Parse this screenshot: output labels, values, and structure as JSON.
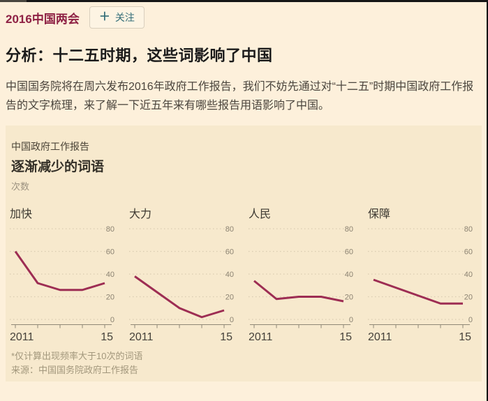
{
  "page": {
    "topic_tag": "2016中国两会",
    "follow_button": {
      "icon": "＋",
      "label": "关注"
    },
    "headline": "分析：十二五时期，这些词影响了中国",
    "body": "中国国务院将在周六发布2016年政府工作报告，我们不妨先通过对“十二五”时期中国政府工作报告的文字梳理，来了解一下近五年来有哪些报告用语影响了中国。"
  },
  "figure": {
    "kicker": "中国政府工作报告",
    "title": "逐渐减少的词语",
    "unit": "次数",
    "footnote": "*仅计算出现频率大于10次的词语",
    "source": "来源：中国国务院政府工作报告"
  },
  "chart_data": {
    "type": "line",
    "layout": "small-multiples, 4 panels, y-axis tick labels on right, dotted horizontal gridlines",
    "title": "逐渐减少的词语",
    "kicker": "中国政府工作报告",
    "ylabel": "次数",
    "x": [
      2011,
      2012,
      2013,
      2014,
      2015
    ],
    "x_tick_labels": [
      "2011",
      "15"
    ],
    "y_ticks": [
      0,
      20,
      40,
      60,
      80
    ],
    "ylim": [
      0,
      80
    ],
    "series": [
      {
        "name": "加快",
        "values": [
          60,
          32,
          26,
          26,
          32
        ]
      },
      {
        "name": "大力",
        "values": [
          38,
          24,
          10,
          2,
          8
        ]
      },
      {
        "name": "人民",
        "values": [
          34,
          18,
          20,
          20,
          16
        ]
      },
      {
        "name": "保障",
        "values": [
          35,
          28,
          21,
          14,
          14
        ]
      }
    ],
    "line_color": "#9d2d53",
    "grid_color": "#d8cab0",
    "axis_color": "#8f8876",
    "tick_label_color": "#8b8271"
  },
  "colors": {
    "page_background": "#fdf0db",
    "panel_background": "#f7e9cd",
    "brand_maroon": "#8e2144",
    "follow_teal": "#336d78"
  }
}
